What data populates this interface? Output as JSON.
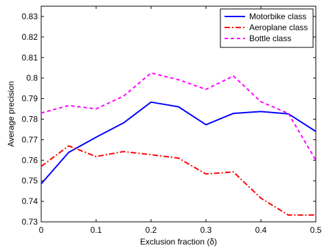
{
  "chart_data": {
    "type": "line",
    "xlabel": "Exclusion fraction (δ)",
    "ylabel": "Average precision",
    "xlim": [
      0,
      0.5
    ],
    "ylim": [
      0.73,
      0.835
    ],
    "xticks": [
      0,
      0.1,
      0.2,
      0.3,
      0.4,
      0.5
    ],
    "xtick_labels": [
      "0",
      "0.1",
      "0.2",
      "0.3",
      "0.4",
      "0.5"
    ],
    "yticks": [
      0.73,
      0.74,
      0.75,
      0.76,
      0.77,
      0.78,
      0.79,
      0.8,
      0.81,
      0.82,
      0.83
    ],
    "ytick_labels": [
      "0.73",
      "0.74",
      "0.75",
      "0.76",
      "0.77",
      "0.78",
      "0.79",
      "0.8",
      "0.81",
      "0.82",
      "0.83"
    ],
    "grid": false,
    "legend_position": "top-right",
    "x": [
      0,
      0.05,
      0.1,
      0.15,
      0.2,
      0.25,
      0.3,
      0.35,
      0.4,
      0.45,
      0.5
    ],
    "series": [
      {
        "name": "Motorbike class",
        "color": "#0000ff",
        "style": "solid",
        "values": [
          0.7485,
          0.7638,
          0.7712,
          0.7782,
          0.7883,
          0.786,
          0.7773,
          0.7828,
          0.7837,
          0.7826,
          0.774
        ]
      },
      {
        "name": "Aeroplane class",
        "color": "#ff0000",
        "style": "dashdot",
        "values": [
          0.757,
          0.767,
          0.7618,
          0.7642,
          0.7627,
          0.761,
          0.7533,
          0.7543,
          0.7415,
          0.7333,
          0.7333
        ]
      },
      {
        "name": "Bottle class",
        "color": "#ff00ff",
        "style": "dashed",
        "values": [
          0.783,
          0.7866,
          0.785,
          0.7912,
          0.8025,
          0.7992,
          0.7945,
          0.801,
          0.7885,
          0.7828,
          0.76
        ]
      }
    ]
  }
}
